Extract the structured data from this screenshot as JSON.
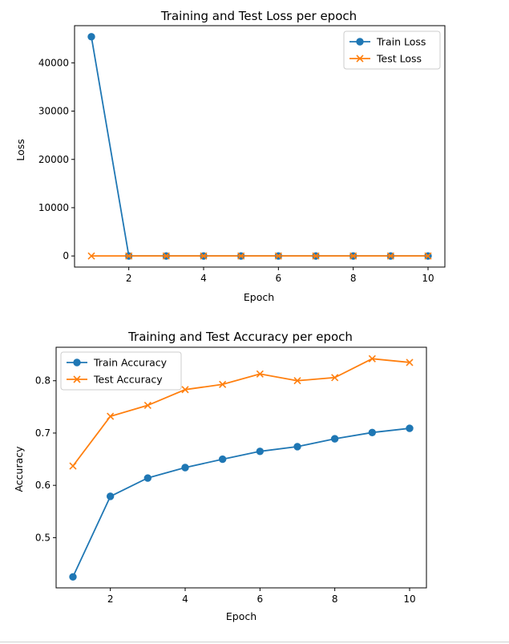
{
  "chart_data": [
    {
      "type": "line",
      "title": "Training and Test Loss per epoch",
      "xlabel": "Epoch",
      "ylabel": "Loss",
      "xlim": [
        0.55,
        10.45
      ],
      "ylim": [
        -2300,
        47700
      ],
      "x_ticks": [
        2,
        4,
        6,
        8,
        10
      ],
      "y_ticks": [
        0,
        10000,
        20000,
        30000,
        40000
      ],
      "grid": false,
      "legend_position": "upper right",
      "x": [
        1,
        2,
        3,
        4,
        5,
        6,
        7,
        8,
        9,
        10
      ],
      "series": [
        {
          "name": "Train Loss",
          "marker": "circle",
          "color": "#1f77b4",
          "values": [
            45400,
            2.1,
            1.3,
            1.1,
            1.0,
            0.95,
            0.9,
            0.88,
            0.85,
            0.83
          ]
        },
        {
          "name": "Test Loss",
          "marker": "x",
          "color": "#ff7f0e",
          "values": [
            1.2,
            1.0,
            0.95,
            0.9,
            0.88,
            0.86,
            0.84,
            0.83,
            0.82,
            0.81
          ]
        }
      ]
    },
    {
      "type": "line",
      "title": "Training and Test Accuracy per epoch",
      "xlabel": "Epoch",
      "ylabel": "Accuracy",
      "xlim": [
        0.55,
        10.45
      ],
      "ylim": [
        0.404,
        0.864
      ],
      "x_ticks": [
        2,
        4,
        6,
        8,
        10
      ],
      "y_ticks": [
        0.5,
        0.6,
        0.7,
        0.8
      ],
      "grid": false,
      "legend_position": "upper left",
      "x": [
        1,
        2,
        3,
        4,
        5,
        6,
        7,
        8,
        9,
        10
      ],
      "series": [
        {
          "name": "Train Accuracy",
          "marker": "circle",
          "color": "#1f77b4",
          "values": [
            0.425,
            0.579,
            0.614,
            0.634,
            0.65,
            0.665,
            0.674,
            0.689,
            0.701,
            0.709
          ]
        },
        {
          "name": "Test Accuracy",
          "marker": "x",
          "color": "#ff7f0e",
          "values": [
            0.637,
            0.732,
            0.753,
            0.783,
            0.793,
            0.813,
            0.8,
            0.806,
            0.842,
            0.835
          ]
        }
      ]
    }
  ]
}
